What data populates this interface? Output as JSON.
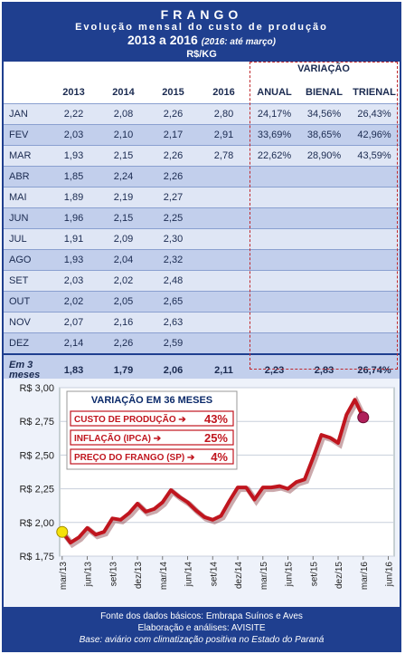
{
  "header": {
    "title": "FRANGO",
    "subtitle": "Evolução mensal do custo de produção",
    "years": "2013 a 2016",
    "years_note": "(2016: até março)",
    "unit": "R$/KG"
  },
  "table": {
    "columns": [
      "2013",
      "2014",
      "2015",
      "2016"
    ],
    "variation_title": "VARIAÇÃO",
    "variation_cols": [
      "ANUAL",
      "BIENAL",
      "TRIENAL"
    ],
    "rows": [
      {
        "m": "JAN",
        "v": [
          "2,22",
          "2,08",
          "2,26",
          "2,80"
        ],
        "var": [
          "24,17%",
          "34,56%",
          "26,43%"
        ]
      },
      {
        "m": "FEV",
        "v": [
          "2,03",
          "2,10",
          "2,17",
          "2,91"
        ],
        "var": [
          "33,69%",
          "38,65%",
          "42,96%"
        ]
      },
      {
        "m": "MAR",
        "v": [
          "1,93",
          "2,15",
          "2,26",
          "2,78"
        ],
        "var": [
          "22,62%",
          "28,90%",
          "43,59%"
        ]
      },
      {
        "m": "ABR",
        "v": [
          "1,85",
          "2,24",
          "2,26",
          ""
        ],
        "var": [
          "",
          "",
          ""
        ]
      },
      {
        "m": "MAI",
        "v": [
          "1,89",
          "2,19",
          "2,27",
          ""
        ],
        "var": [
          "",
          "",
          ""
        ]
      },
      {
        "m": "JUN",
        "v": [
          "1,96",
          "2,15",
          "2,25",
          ""
        ],
        "var": [
          "",
          "",
          ""
        ]
      },
      {
        "m": "JUL",
        "v": [
          "1,91",
          "2,09",
          "2,30",
          ""
        ],
        "var": [
          "",
          "",
          ""
        ]
      },
      {
        "m": "AGO",
        "v": [
          "1,93",
          "2,04",
          "2,32",
          ""
        ],
        "var": [
          "",
          "",
          ""
        ]
      },
      {
        "m": "SET",
        "v": [
          "2,03",
          "2,02",
          "2,48",
          ""
        ],
        "var": [
          "",
          "",
          ""
        ]
      },
      {
        "m": "OUT",
        "v": [
          "2,02",
          "2,05",
          "2,65",
          ""
        ],
        "var": [
          "",
          "",
          ""
        ]
      },
      {
        "m": "NOV",
        "v": [
          "2,07",
          "2,16",
          "2,63",
          ""
        ],
        "var": [
          "",
          "",
          ""
        ]
      },
      {
        "m": "DEZ",
        "v": [
          "2,14",
          "2,26",
          "2,59",
          ""
        ],
        "var": [
          "",
          "",
          ""
        ]
      }
    ],
    "total": {
      "m": "Em 3 meses",
      "v": [
        "1,83",
        "1,79",
        "2,06",
        "2,11"
      ],
      "var": [
        "2,23",
        "2,83",
        "26,74%"
      ]
    }
  },
  "chart_data": {
    "type": "line",
    "y_tick_labels": [
      "R$ 3,00",
      "R$ 2,75",
      "R$ 2,50",
      "R$ 2,25",
      "R$ 2,00",
      "R$ 1,75"
    ],
    "ylim": [
      1.75,
      3.0
    ],
    "x_tick_labels": [
      "mar/13",
      "jun/13",
      "set/13",
      "dez/13",
      "mar/14",
      "jun/14",
      "set/14",
      "dez/14",
      "mar/15",
      "jun/15",
      "set/15",
      "dez/15",
      "mar/16",
      "jun/16"
    ],
    "x": [
      "mar/13",
      "abr/13",
      "mai/13",
      "jun/13",
      "jul/13",
      "ago/13",
      "set/13",
      "out/13",
      "nov/13",
      "dez/13",
      "jan/14",
      "fev/14",
      "mar/14",
      "abr/14",
      "mai/14",
      "jun/14",
      "jul/14",
      "ago/14",
      "set/14",
      "out/14",
      "nov/14",
      "dez/14",
      "jan/15",
      "fev/15",
      "mar/15",
      "abr/15",
      "mai/15",
      "jun/15",
      "jul/15",
      "ago/15",
      "set/15",
      "out/15",
      "nov/15",
      "dez/15",
      "jan/16",
      "fev/16",
      "mar/16"
    ],
    "values": [
      1.93,
      1.85,
      1.89,
      1.96,
      1.91,
      1.93,
      2.03,
      2.02,
      2.07,
      2.14,
      2.08,
      2.1,
      2.15,
      2.24,
      2.19,
      2.15,
      2.09,
      2.04,
      2.02,
      2.05,
      2.16,
      2.26,
      2.26,
      2.17,
      2.26,
      2.26,
      2.27,
      2.25,
      2.3,
      2.32,
      2.48,
      2.65,
      2.63,
      2.59,
      2.8,
      2.91,
      2.78
    ],
    "line_color": "#c0151e",
    "start_marker_color": "#f5e20a",
    "end_marker_color": "#b0205a",
    "grid": true,
    "annotation": {
      "title": "VARIAÇÃO EM 36 MESES",
      "items": [
        {
          "label": "CUSTO DE PRODUÇÃO ➔",
          "value": "43%"
        },
        {
          "label": "INFLAÇÃO (IPCA) ➔",
          "value": "25%"
        },
        {
          "label": "PREÇO DO FRANGO (SP) ➔",
          "value": "4%"
        }
      ]
    }
  },
  "footer": {
    "line1": "Fonte dos dados básicos: Embrapa Suínos e Aves",
    "line2": "Elaboração e análises: AVISITE",
    "line3": "Base: aviário com climatização positiva no Estado do Paraná"
  }
}
